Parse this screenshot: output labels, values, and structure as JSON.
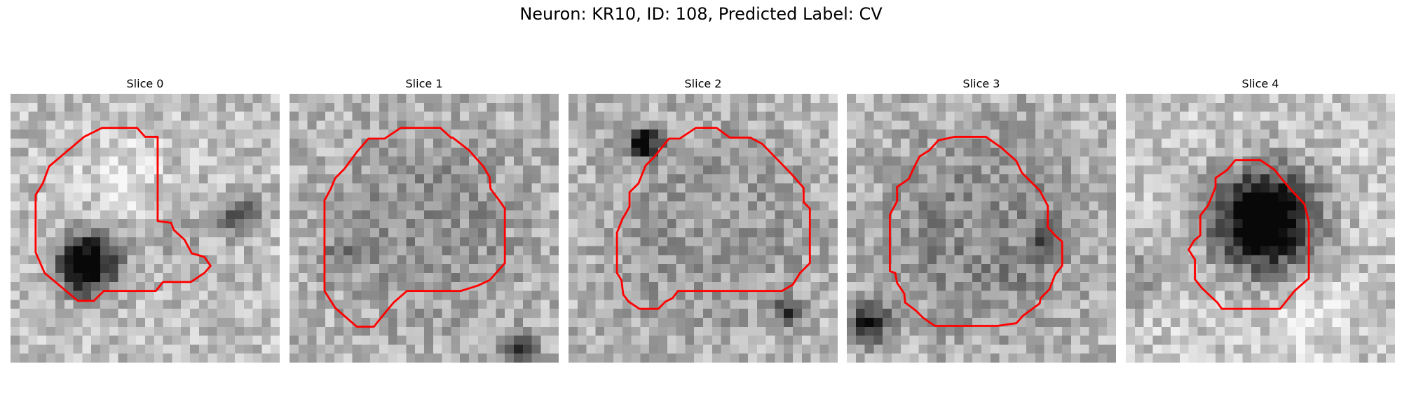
{
  "figure": {
    "title": "Neuron: KR10, ID: 108, Predicted Label: CV"
  },
  "contour_color": "#ff0000",
  "grid_size": 30,
  "panels": [
    {
      "title": "Slice 0",
      "blobs": [
        {
          "cx": 8,
          "cy": 18.5,
          "r": 4.2,
          "amp": -0.95
        },
        {
          "cx": 12,
          "cy": 9,
          "r": 6,
          "amp": 0.15
        },
        {
          "cx": 25,
          "cy": 13,
          "r": 3,
          "amp": -0.35
        },
        {
          "cx": 18,
          "cy": 16,
          "r": 6,
          "amp": -0.1
        }
      ],
      "base": 0.75,
      "seed": 11,
      "contour": [
        [
          10.2,
          3.8
        ],
        [
          14.1,
          3.8
        ],
        [
          15,
          4.8
        ],
        [
          16.4,
          4.8
        ],
        [
          16.4,
          14.2
        ],
        [
          17.9,
          14.4
        ],
        [
          18.2,
          15.2
        ],
        [
          19.4,
          16.3
        ],
        [
          20.2,
          17.8
        ],
        [
          21.6,
          18.2
        ],
        [
          22.3,
          19.2
        ],
        [
          21.6,
          20
        ],
        [
          20.1,
          21
        ],
        [
          17,
          21
        ],
        [
          16.2,
          22
        ],
        [
          10.4,
          22
        ],
        [
          9.3,
          23.1
        ],
        [
          7.5,
          23.1
        ],
        [
          3.8,
          20
        ],
        [
          2.8,
          17.7
        ],
        [
          2.8,
          11.3
        ],
        [
          3.6,
          10
        ],
        [
          4.3,
          8.1
        ],
        [
          8.2,
          4.8
        ]
      ]
    },
    {
      "title": "Slice 1",
      "blobs": [
        {
          "cx": 15,
          "cy": 14,
          "r": 9,
          "amp": 0.2
        },
        {
          "cx": 15,
          "cy": 14,
          "r": 11.5,
          "amp": -0.35
        },
        {
          "cx": 25,
          "cy": 28,
          "r": 2.2,
          "amp": -0.7
        },
        {
          "cx": 5,
          "cy": 18,
          "r": 3,
          "amp": -0.2
        }
      ],
      "base": 0.72,
      "seed": 23,
      "contour": [
        [
          12.4,
          3.8
        ],
        [
          16.8,
          3.8
        ],
        [
          18,
          4.9
        ],
        [
          18.2,
          4.9
        ],
        [
          20,
          6.3
        ],
        [
          21.6,
          8.1
        ],
        [
          22.3,
          9.3
        ],
        [
          22.4,
          10.6
        ],
        [
          23.3,
          11.8
        ],
        [
          24,
          12.8
        ],
        [
          24,
          18.9
        ],
        [
          22.3,
          20.8
        ],
        [
          21,
          21.4
        ],
        [
          19.1,
          22
        ],
        [
          13.1,
          22
        ],
        [
          11.6,
          23.3
        ],
        [
          10.6,
          24.5
        ],
        [
          9.4,
          26
        ],
        [
          7.5,
          26
        ],
        [
          5.1,
          23.9
        ],
        [
          3.9,
          22
        ],
        [
          3.9,
          11.9
        ],
        [
          4.6,
          10.6
        ],
        [
          5.1,
          9.4
        ],
        [
          6.1,
          8.4
        ],
        [
          7.5,
          6.5
        ],
        [
          8.8,
          5
        ],
        [
          10.6,
          5
        ]
      ]
    },
    {
      "title": "Slice 2",
      "blobs": [
        {
          "cx": 15,
          "cy": 15,
          "r": 12,
          "amp": -0.35
        },
        {
          "cx": 15,
          "cy": 15,
          "r": 9,
          "amp": 0.25
        },
        {
          "cx": 8,
          "cy": 5,
          "r": 2.2,
          "amp": -0.7
        },
        {
          "cx": 24,
          "cy": 24,
          "r": 2,
          "amp": -0.45
        }
      ],
      "base": 0.72,
      "seed": 37,
      "contour": [
        [
          14.2,
          3.8
        ],
        [
          16.5,
          3.8
        ],
        [
          18,
          4.9
        ],
        [
          20.3,
          4.9
        ],
        [
          21.6,
          5.6
        ],
        [
          24.8,
          8.9
        ],
        [
          26.2,
          10.5
        ],
        [
          26.2,
          12.1
        ],
        [
          26.9,
          12.8
        ],
        [
          26.9,
          18.9
        ],
        [
          25.8,
          20
        ],
        [
          25,
          21.3
        ],
        [
          23.8,
          22
        ],
        [
          18.5,
          22
        ],
        [
          12.2,
          22
        ],
        [
          11.6,
          22.8
        ],
        [
          10.8,
          23.2
        ],
        [
          10,
          24
        ],
        [
          7.9,
          24
        ],
        [
          6.7,
          23.2
        ],
        [
          6.1,
          22.4
        ],
        [
          5.9,
          20.8
        ],
        [
          5.4,
          20
        ],
        [
          5.4,
          15.5
        ],
        [
          6,
          14
        ],
        [
          6.8,
          12.6
        ],
        [
          6.8,
          11
        ],
        [
          7.8,
          10
        ],
        [
          8.6,
          8
        ],
        [
          9.6,
          7
        ],
        [
          11.2,
          5
        ],
        [
          12.4,
          5
        ]
      ]
    },
    {
      "title": "Slice 3",
      "blobs": [
        {
          "cx": 14.5,
          "cy": 14.5,
          "r": 11.5,
          "amp": -0.45
        },
        {
          "cx": 14.5,
          "cy": 14,
          "r": 8,
          "amp": 0.3
        },
        {
          "cx": 2,
          "cy": 25,
          "r": 3,
          "amp": -0.6
        },
        {
          "cx": 22,
          "cy": 16,
          "r": 2,
          "amp": -0.35
        }
      ],
      "base": 0.72,
      "seed": 41,
      "contour": [
        [
          12,
          4.8
        ],
        [
          15.5,
          4.8
        ],
        [
          17.2,
          6
        ],
        [
          18.9,
          7.5
        ],
        [
          19.5,
          8.8
        ],
        [
          21.5,
          10.8
        ],
        [
          22.4,
          12.5
        ],
        [
          22.4,
          14.9
        ],
        [
          23.3,
          15.9
        ],
        [
          24,
          16.5
        ],
        [
          24,
          19.2
        ],
        [
          23.2,
          20.2
        ],
        [
          22.6,
          21.8
        ],
        [
          21.6,
          22.8
        ],
        [
          21.5,
          23.4
        ],
        [
          19.6,
          24.8
        ],
        [
          18.9,
          25.6
        ],
        [
          16.8,
          25.9
        ],
        [
          13.2,
          25.9
        ],
        [
          9.8,
          25.9
        ],
        [
          8.5,
          25
        ],
        [
          7.7,
          24.2
        ],
        [
          6.5,
          23.3
        ],
        [
          6.4,
          22.3
        ],
        [
          5.6,
          21.1
        ],
        [
          5.4,
          20
        ],
        [
          4.8,
          19.8
        ],
        [
          4.8,
          13.5
        ],
        [
          5.6,
          12
        ],
        [
          5.6,
          10.4
        ],
        [
          6.9,
          9.5
        ],
        [
          7.6,
          8
        ],
        [
          8.1,
          7
        ],
        [
          9.2,
          6.3
        ],
        [
          10.2,
          5.2
        ]
      ]
    },
    {
      "title": "Slice 4",
      "blobs": [
        {
          "cx": 15,
          "cy": 13.5,
          "r": 6.5,
          "amp": -0.8
        },
        {
          "cx": 15,
          "cy": 13.5,
          "r": 8.5,
          "amp": -0.25
        },
        {
          "cx": 1,
          "cy": 20,
          "r": 3.5,
          "amp": -0.25
        },
        {
          "cx": 20,
          "cy": 24,
          "r": 5,
          "amp": 0.15
        }
      ],
      "base": 0.78,
      "seed": 53,
      "contour": [
        [
          12.2,
          7.4
        ],
        [
          15,
          7.4
        ],
        [
          16.6,
          8.5
        ],
        [
          17.3,
          9.4
        ],
        [
          18.4,
          10.7
        ],
        [
          19.9,
          12.3
        ],
        [
          20.4,
          14.3
        ],
        [
          20.4,
          20.6
        ],
        [
          18.8,
          22
        ],
        [
          17.2,
          24
        ],
        [
          13.6,
          24
        ],
        [
          10.7,
          24
        ],
        [
          10.2,
          23.3
        ],
        [
          8.5,
          21.7
        ],
        [
          7.7,
          20.7
        ],
        [
          7.7,
          18.5
        ],
        [
          7,
          17.4
        ],
        [
          7.6,
          16.4
        ],
        [
          8.3,
          15.8
        ],
        [
          8.3,
          13.6
        ],
        [
          9.2,
          12.4
        ],
        [
          10,
          10.4
        ],
        [
          10,
          9.4
        ],
        [
          11.3,
          8.5
        ]
      ]
    }
  ]
}
